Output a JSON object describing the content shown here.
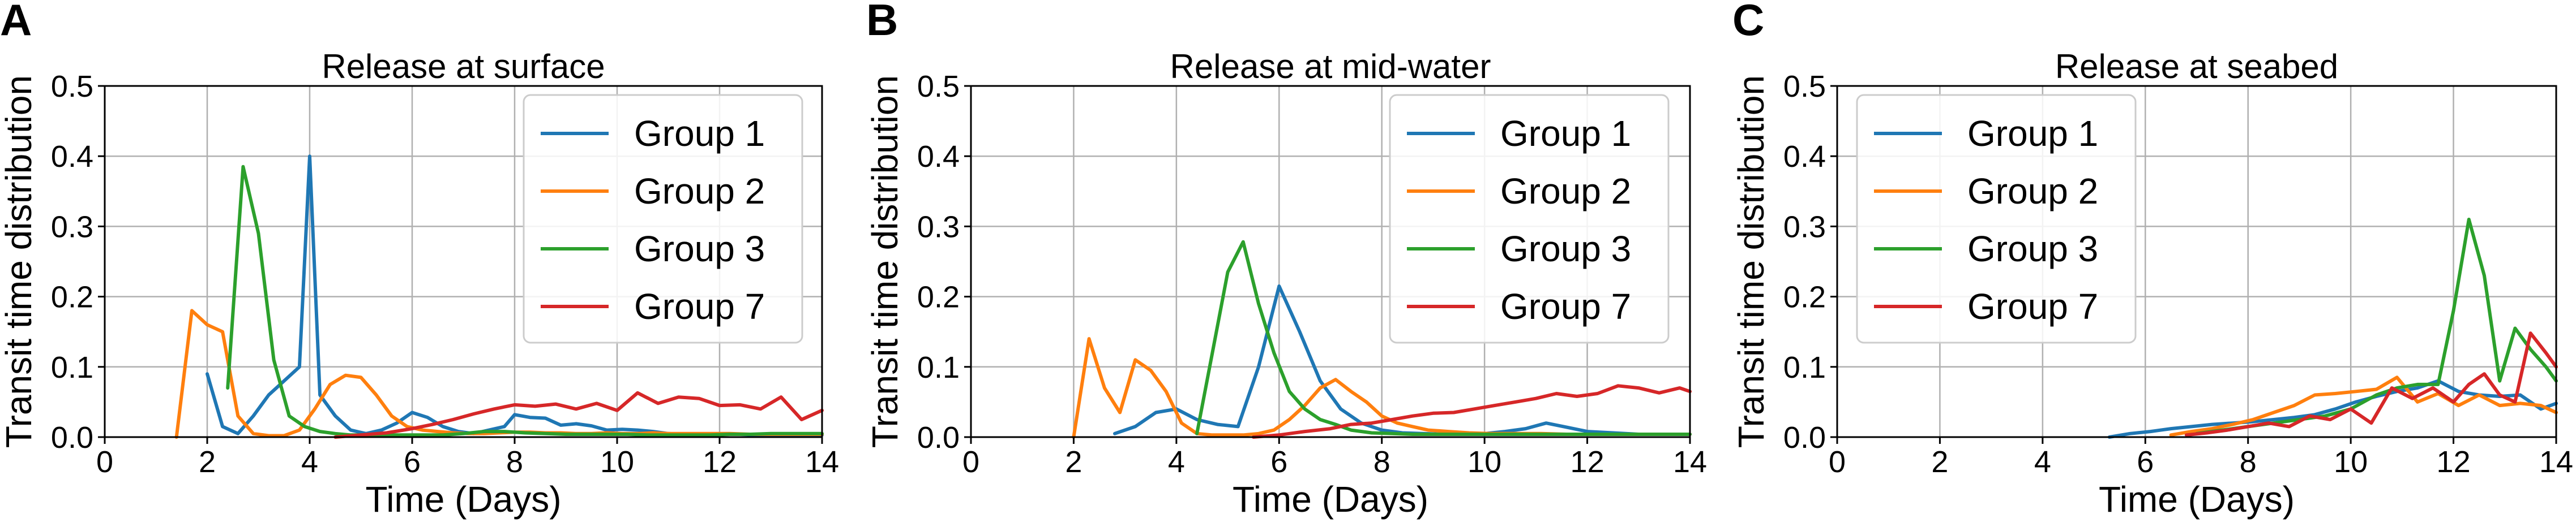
{
  "chart_data": [
    {
      "type": "line",
      "panel_letter": "A",
      "title": "Release at surface",
      "xlabel": "Time (Days)",
      "ylabel": "Transit time distribution",
      "xlim": [
        0,
        14
      ],
      "ylim": [
        0,
        0.5
      ],
      "xticks": [
        0,
        2,
        4,
        6,
        8,
        10,
        12,
        14
      ],
      "yticks": [
        0.0,
        0.1,
        0.2,
        0.3,
        0.4,
        0.5
      ],
      "xtick_labels": [
        "0",
        "2",
        "4",
        "6",
        "8",
        "10",
        "12",
        "14"
      ],
      "ytick_labels": [
        "0.0",
        "0.1",
        "0.2",
        "0.3",
        "0.4",
        "0.5"
      ],
      "grid": true,
      "legend": "top-right",
      "series": [
        {
          "name": "Group 1",
          "color": "#1f77b4",
          "x": [
            2.0,
            2.3,
            2.6,
            2.9,
            3.2,
            3.5,
            3.8,
            4.0,
            4.2,
            4.5,
            4.8,
            5.1,
            5.4,
            5.7,
            6.0,
            6.3,
            6.6,
            6.9,
            7.2,
            7.5,
            7.8,
            8.0,
            8.3,
            8.6,
            8.9,
            9.2,
            9.5,
            9.8,
            10.1,
            10.4,
            10.7,
            11.0,
            11.3,
            11.6,
            12.0,
            12.4,
            12.8,
            13.2,
            13.6,
            14.0
          ],
          "y": [
            0.09,
            0.015,
            0.005,
            0.03,
            0.06,
            0.08,
            0.1,
            0.4,
            0.06,
            0.03,
            0.01,
            0.005,
            0.01,
            0.02,
            0.035,
            0.028,
            0.015,
            0.008,
            0.005,
            0.01,
            0.015,
            0.032,
            0.028,
            0.027,
            0.017,
            0.019,
            0.016,
            0.01,
            0.011,
            0.01,
            0.008,
            0.005,
            0.004,
            0.004,
            0.004,
            0.004,
            0.003,
            0.003,
            0.003,
            0.003
          ]
        },
        {
          "name": "Group 2",
          "color": "#ff7f0e",
          "x": [
            1.4,
            1.7,
            2.0,
            2.3,
            2.6,
            2.9,
            3.2,
            3.5,
            3.8,
            4.1,
            4.4,
            4.7,
            5.0,
            5.3,
            5.6,
            5.9,
            6.2,
            6.5,
            6.8,
            7.1,
            7.4,
            7.7,
            8.0,
            8.3,
            8.6,
            8.9,
            9.2,
            9.5,
            9.8,
            10.1,
            10.4,
            10.7,
            11.0,
            11.4,
            11.8,
            12.2,
            12.6,
            13.0,
            13.4,
            13.8,
            14.0
          ],
          "y": [
            0.0,
            0.18,
            0.16,
            0.15,
            0.03,
            0.005,
            0.002,
            0.002,
            0.01,
            0.04,
            0.075,
            0.088,
            0.085,
            0.06,
            0.03,
            0.015,
            0.01,
            0.008,
            0.006,
            0.005,
            0.005,
            0.006,
            0.007,
            0.007,
            0.006,
            0.006,
            0.005,
            0.005,
            0.006,
            0.005,
            0.005,
            0.006,
            0.005,
            0.005,
            0.005,
            0.005,
            0.004,
            0.004,
            0.004,
            0.004,
            0.004
          ]
        },
        {
          "name": "Group 3",
          "color": "#2ca02c",
          "x": [
            2.4,
            2.7,
            3.0,
            3.3,
            3.6,
            3.9,
            4.2,
            4.5,
            4.8,
            5.1,
            5.4,
            5.8,
            6.2,
            6.6,
            7.0,
            7.4,
            7.8,
            8.2,
            8.6,
            9.0,
            9.4,
            9.8,
            10.2,
            10.6,
            11.0,
            11.4,
            11.8,
            12.2,
            12.6,
            13.0,
            13.4,
            13.8,
            14.0
          ],
          "y": [
            0.07,
            0.385,
            0.29,
            0.11,
            0.03,
            0.015,
            0.008,
            0.005,
            0.003,
            0.003,
            0.003,
            0.003,
            0.003,
            0.003,
            0.005,
            0.008,
            0.008,
            0.006,
            0.005,
            0.004,
            0.004,
            0.004,
            0.004,
            0.003,
            0.003,
            0.003,
            0.003,
            0.004,
            0.004,
            0.005,
            0.005,
            0.005,
            0.005
          ]
        },
        {
          "name": "Group 7",
          "color": "#d62728",
          "x": [
            4.5,
            5.0,
            5.5,
            6.0,
            6.4,
            6.8,
            7.2,
            7.6,
            8.0,
            8.4,
            8.8,
            9.2,
            9.6,
            10.0,
            10.4,
            10.8,
            11.2,
            11.6,
            12.0,
            12.4,
            12.8,
            13.2,
            13.6,
            14.0
          ],
          "y": [
            0.0,
            0.003,
            0.006,
            0.012,
            0.018,
            0.025,
            0.033,
            0.04,
            0.046,
            0.044,
            0.047,
            0.04,
            0.048,
            0.038,
            0.063,
            0.048,
            0.057,
            0.055,
            0.045,
            0.046,
            0.04,
            0.057,
            0.025,
            0.038
          ]
        }
      ]
    },
    {
      "type": "line",
      "panel_letter": "B",
      "title": "Release at mid-water",
      "xlabel": "Time (Days)",
      "ylabel": "Transit time distribution",
      "xlim": [
        0,
        14
      ],
      "ylim": [
        0,
        0.5
      ],
      "xticks": [
        0,
        2,
        4,
        6,
        8,
        10,
        12,
        14
      ],
      "yticks": [
        0.0,
        0.1,
        0.2,
        0.3,
        0.4,
        0.5
      ],
      "xtick_labels": [
        "0",
        "2",
        "4",
        "6",
        "8",
        "10",
        "12",
        "14"
      ],
      "ytick_labels": [
        "0.0",
        "0.1",
        "0.2",
        "0.3",
        "0.4",
        "0.5"
      ],
      "grid": true,
      "legend": "top-right",
      "series": [
        {
          "name": "Group 1",
          "color": "#1f77b4",
          "x": [
            2.8,
            3.2,
            3.6,
            4.0,
            4.4,
            4.8,
            5.2,
            5.6,
            6.0,
            6.4,
            6.8,
            7.2,
            7.6,
            8.0,
            8.4,
            8.8,
            9.2,
            9.6,
            10.0,
            10.4,
            10.8,
            11.2,
            11.6,
            12.0,
            12.5,
            13.0,
            13.5,
            14.0
          ],
          "y": [
            0.005,
            0.015,
            0.035,
            0.04,
            0.025,
            0.018,
            0.015,
            0.1,
            0.215,
            0.15,
            0.08,
            0.04,
            0.02,
            0.01,
            0.006,
            0.005,
            0.004,
            0.004,
            0.005,
            0.008,
            0.012,
            0.02,
            0.014,
            0.008,
            0.006,
            0.004,
            0.004,
            0.004
          ]
        },
        {
          "name": "Group 2",
          "color": "#ff7f0e",
          "x": [
            2.0,
            2.3,
            2.6,
            2.9,
            3.2,
            3.5,
            3.8,
            4.1,
            4.4,
            4.7,
            5.0,
            5.3,
            5.6,
            5.9,
            6.2,
            6.5,
            6.8,
            7.1,
            7.4,
            7.7,
            8.0,
            8.3,
            8.6,
            8.9,
            9.3,
            9.7,
            10.1,
            10.6,
            11.1,
            11.6,
            12.1,
            12.6,
            13.1,
            13.6,
            14.0
          ],
          "y": [
            0.0,
            0.14,
            0.07,
            0.035,
            0.11,
            0.095,
            0.065,
            0.02,
            0.005,
            0.003,
            0.003,
            0.003,
            0.005,
            0.01,
            0.025,
            0.045,
            0.07,
            0.082,
            0.065,
            0.05,
            0.03,
            0.02,
            0.015,
            0.01,
            0.008,
            0.006,
            0.005,
            0.005,
            0.005,
            0.004,
            0.004,
            0.004,
            0.004,
            0.004,
            0.004
          ]
        },
        {
          "name": "Group 3",
          "color": "#2ca02c",
          "x": [
            4.4,
            4.7,
            5.0,
            5.3,
            5.6,
            5.9,
            6.2,
            6.5,
            6.8,
            7.1,
            7.4,
            7.8,
            8.2,
            8.6,
            9.0,
            9.5,
            10.0,
            10.5,
            11.0,
            11.5,
            12.0,
            12.5,
            13.0,
            13.5,
            14.0
          ],
          "y": [
            0.005,
            0.12,
            0.235,
            0.278,
            0.19,
            0.12,
            0.065,
            0.04,
            0.025,
            0.018,
            0.01,
            0.006,
            0.005,
            0.004,
            0.004,
            0.004,
            0.004,
            0.004,
            0.004,
            0.004,
            0.004,
            0.004,
            0.004,
            0.004,
            0.004
          ]
        },
        {
          "name": "Group 7",
          "color": "#d62728",
          "x": [
            5.5,
            6.0,
            6.5,
            7.0,
            7.4,
            7.8,
            8.2,
            8.6,
            9.0,
            9.4,
            9.8,
            10.2,
            10.6,
            11.0,
            11.4,
            11.8,
            12.2,
            12.6,
            13.0,
            13.4,
            13.8,
            14.0
          ],
          "y": [
            0.0,
            0.003,
            0.008,
            0.012,
            0.018,
            0.02,
            0.025,
            0.03,
            0.034,
            0.035,
            0.04,
            0.045,
            0.05,
            0.055,
            0.062,
            0.058,
            0.062,
            0.073,
            0.07,
            0.063,
            0.07,
            0.065
          ]
        }
      ]
    },
    {
      "type": "line",
      "panel_letter": "C",
      "title": "Release at seabed",
      "xlabel": "Time (Days)",
      "ylabel": "Transit time distribution",
      "xlim": [
        0,
        14
      ],
      "ylim": [
        0,
        0.5
      ],
      "xticks": [
        0,
        2,
        4,
        6,
        8,
        10,
        12,
        14
      ],
      "yticks": [
        0.0,
        0.1,
        0.2,
        0.3,
        0.4,
        0.5
      ],
      "xtick_labels": [
        "0",
        "2",
        "4",
        "6",
        "8",
        "10",
        "12",
        "14"
      ],
      "ytick_labels": [
        "0.0",
        "0.1",
        "0.2",
        "0.3",
        "0.4",
        "0.5"
      ],
      "grid": true,
      "legend": "top-left",
      "series": [
        {
          "name": "Group 1",
          "color": "#1f77b4",
          "x": [
            5.3,
            5.7,
            6.1,
            6.5,
            6.9,
            7.3,
            7.7,
            8.1,
            8.5,
            8.9,
            9.3,
            9.7,
            10.1,
            10.5,
            10.9,
            11.3,
            11.7,
            12.1,
            12.5,
            12.9,
            13.3,
            13.7,
            14.0
          ],
          "y": [
            0.0,
            0.005,
            0.008,
            0.012,
            0.015,
            0.018,
            0.02,
            0.022,
            0.025,
            0.028,
            0.032,
            0.04,
            0.05,
            0.058,
            0.065,
            0.07,
            0.08,
            0.065,
            0.06,
            0.058,
            0.06,
            0.04,
            0.048
          ]
        },
        {
          "name": "Group 2",
          "color": "#ff7f0e",
          "x": [
            6.5,
            6.9,
            7.3,
            7.7,
            8.1,
            8.5,
            8.9,
            9.3,
            9.7,
            10.1,
            10.5,
            10.9,
            11.3,
            11.7,
            12.1,
            12.5,
            12.9,
            13.3,
            13.7,
            14.0
          ],
          "y": [
            0.003,
            0.008,
            0.012,
            0.018,
            0.025,
            0.035,
            0.045,
            0.06,
            0.062,
            0.065,
            0.068,
            0.085,
            0.05,
            0.062,
            0.045,
            0.06,
            0.045,
            0.048,
            0.045,
            0.035
          ]
        },
        {
          "name": "Group 3",
          "color": "#2ca02c",
          "x": [
            7.0,
            7.5,
            8.0,
            8.5,
            9.0,
            9.5,
            10.0,
            10.5,
            10.9,
            11.3,
            11.7,
            12.0,
            12.3,
            12.6,
            12.9,
            13.2,
            13.5,
            13.8,
            14.0
          ],
          "y": [
            0.005,
            0.01,
            0.015,
            0.02,
            0.025,
            0.03,
            0.04,
            0.06,
            0.07,
            0.075,
            0.075,
            0.18,
            0.31,
            0.23,
            0.08,
            0.155,
            0.125,
            0.1,
            0.08
          ]
        },
        {
          "name": "Group 7",
          "color": "#d62728",
          "x": [
            6.8,
            7.2,
            7.6,
            8.0,
            8.4,
            8.8,
            9.2,
            9.6,
            10.0,
            10.4,
            10.8,
            11.2,
            11.6,
            12.0,
            12.3,
            12.6,
            12.9,
            13.2,
            13.5,
            13.8,
            14.0
          ],
          "y": [
            0.003,
            0.006,
            0.01,
            0.015,
            0.02,
            0.015,
            0.03,
            0.025,
            0.04,
            0.02,
            0.07,
            0.055,
            0.07,
            0.05,
            0.075,
            0.09,
            0.06,
            0.05,
            0.148,
            0.12,
            0.1
          ]
        }
      ]
    }
  ]
}
